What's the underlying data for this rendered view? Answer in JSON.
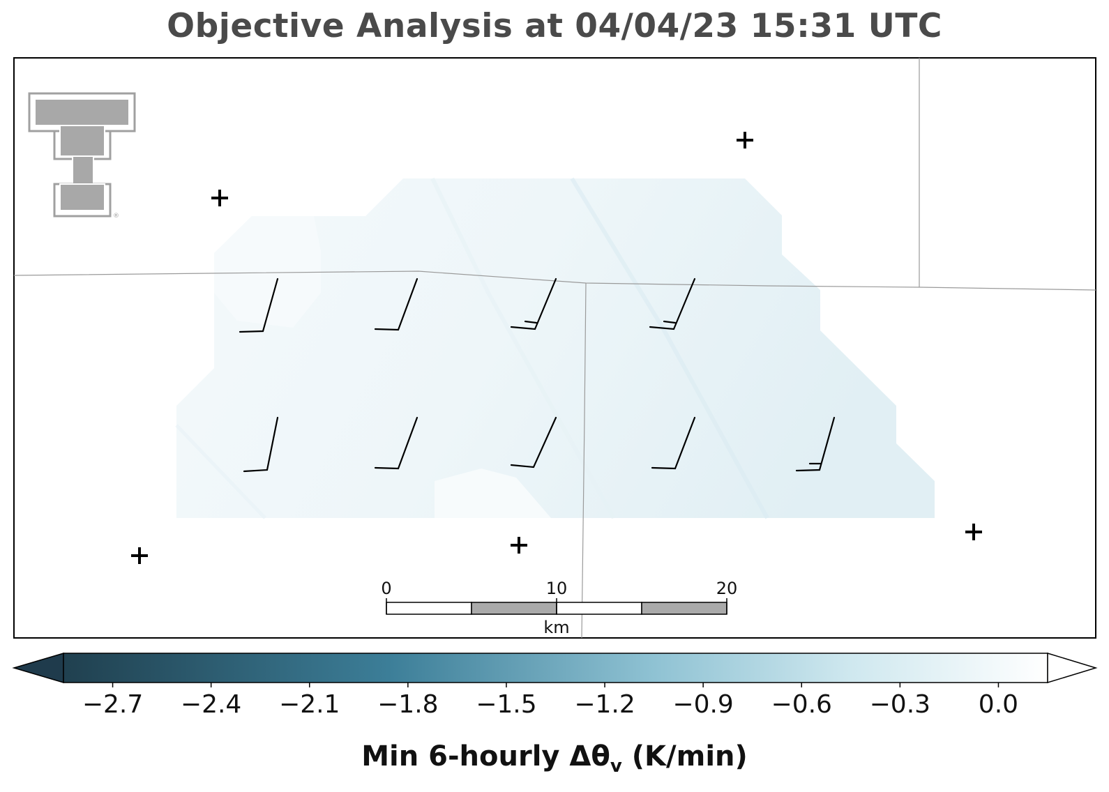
{
  "title": "Objective Analysis at 04/04/23 15:31 UTC",
  "colorbar": {
    "label_main": "Min 6-hourly Δθ",
    "label_sub": "v",
    "label_units": " (K/min)",
    "ticks": [
      "−2.7",
      "−2.4",
      "−2.1",
      "−1.8",
      "−1.5",
      "−1.2",
      "−0.9",
      "−0.6",
      "−0.3",
      "0.0"
    ],
    "tick_values": [
      -2.7,
      -2.4,
      -2.1,
      -1.8,
      -1.5,
      -1.2,
      -0.9,
      -0.6,
      -0.3,
      0.0
    ],
    "range": [
      -2.85,
      0.15
    ],
    "extend": "both",
    "color_stops": [
      "#1f3b4d",
      "#3c7f9a",
      "#9fd0df",
      "#ffffff"
    ]
  },
  "scale_bar": {
    "unit": "km",
    "labels": [
      "0",
      "10",
      "20"
    ]
  },
  "logo": {
    "name": "Texas Tech double-T logo",
    "color": "#a0a0a0"
  },
  "analysis_field": {
    "variable": "Min 6-hourly Δθv",
    "approx_range_shown": [
      -0.3,
      0.0
    ]
  },
  "wind_barbs": [
    {
      "row": 1,
      "col": 1,
      "speed_kt": 10
    },
    {
      "row": 1,
      "col": 2,
      "speed_kt": 10
    },
    {
      "row": 1,
      "col": 3,
      "speed_kt": 15
    },
    {
      "row": 1,
      "col": 4,
      "speed_kt": 15
    },
    {
      "row": 2,
      "col": 1,
      "speed_kt": 10
    },
    {
      "row": 2,
      "col": 2,
      "speed_kt": 10
    },
    {
      "row": 2,
      "col": 3,
      "speed_kt": 10
    },
    {
      "row": 2,
      "col": 4,
      "speed_kt": 10
    },
    {
      "row": 2,
      "col": 5,
      "speed_kt": 15
    }
  ],
  "station_markers": 5
}
